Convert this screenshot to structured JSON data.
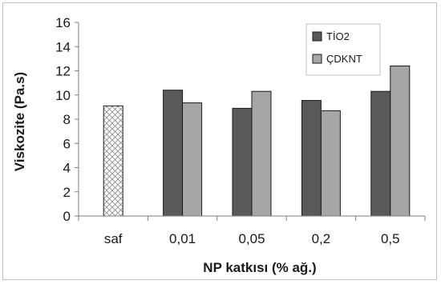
{
  "chart_data": {
    "type": "bar",
    "categories": [
      "saf",
      "0,01",
      "0,05",
      "0,2",
      "0,5"
    ],
    "series": [
      {
        "key": "saf",
        "values": [
          9.1,
          null,
          null,
          null,
          null
        ],
        "color": "#ffffff",
        "pattern": "crosshatch"
      },
      {
        "key": "tio2",
        "name": "TİO2",
        "values": [
          null,
          10.4,
          8.9,
          9.55,
          10.3
        ],
        "color": "#595959"
      },
      {
        "key": "cdknt",
        "name": "ÇDKNT",
        "values": [
          null,
          9.35,
          10.3,
          8.7,
          12.4
        ],
        "color": "#a6a6a6"
      }
    ],
    "ylim": [
      0,
      16
    ],
    "yticks": [
      "0",
      "2",
      "4",
      "6",
      "8",
      "10",
      "12",
      "14",
      "16"
    ],
    "xlabel": "NP katkısı (% ağ.)",
    "ylabel": "Viskozite (Pa.s)",
    "grid": false,
    "legend_position": "top-right"
  }
}
